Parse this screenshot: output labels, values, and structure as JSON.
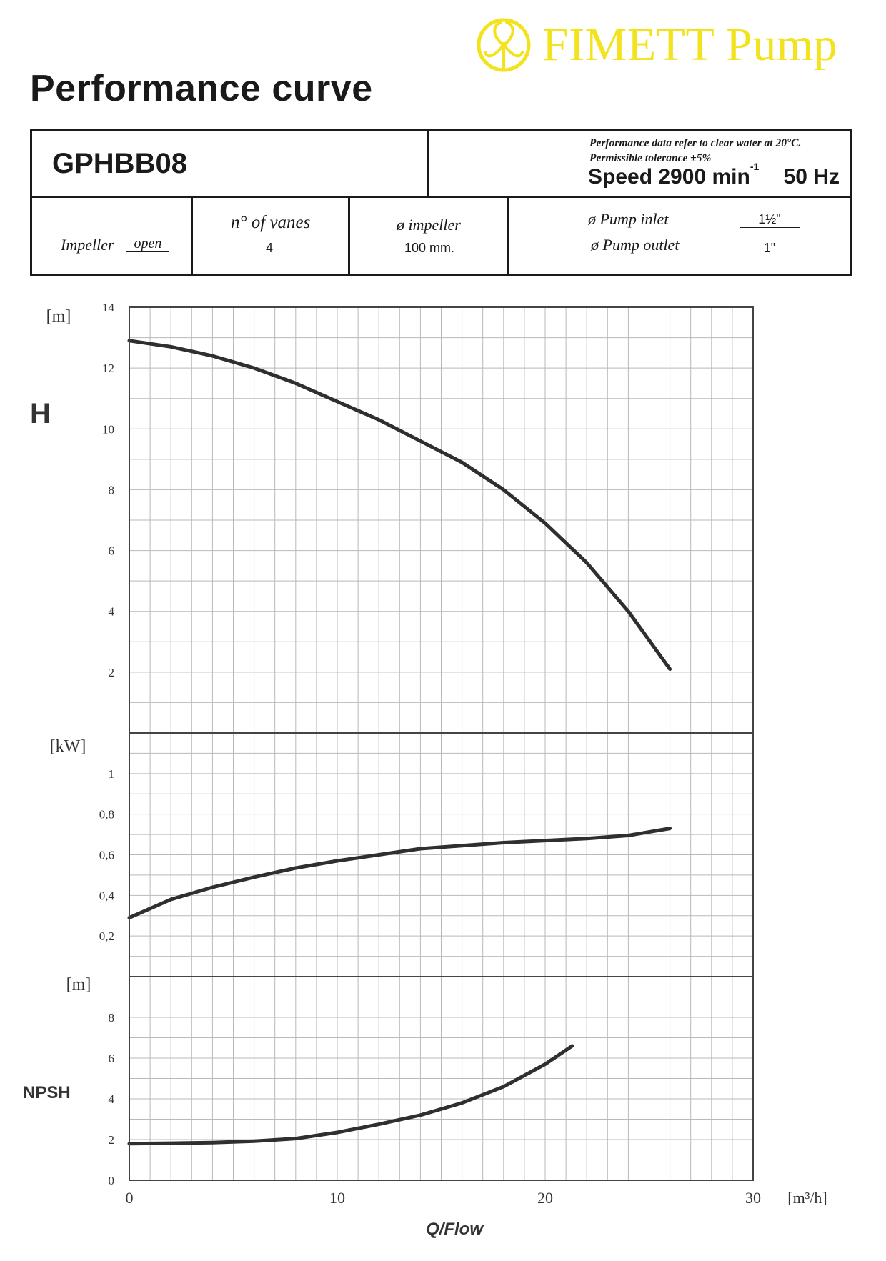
{
  "brand": {
    "name": "FIMETT Pump",
    "color": "#f2e31c",
    "icon": "pinwheel-logo-icon"
  },
  "page_title": "Performance curve",
  "model": "GPHBB08",
  "notes": {
    "line1": "Performance data refer to clear water at 20°C.",
    "line2": "Permissible tolerance ±5%"
  },
  "speed": {
    "label": "Speed",
    "value": "2900",
    "unit": "min",
    "exponent": "-1",
    "frequency": "50 Hz"
  },
  "specs": {
    "impeller_label": "Impeller",
    "impeller_value": "open",
    "vanes_label": "n°  of vanes",
    "vanes_value": "4",
    "impeller_dia_label": "ø impeller",
    "impeller_dia_value": "100 mm.",
    "inlet_label": "ø Pump inlet",
    "inlet_value": "1½\"",
    "outlet_label": "ø Pump outlet",
    "outlet_value": "1\""
  },
  "chart_data": [
    {
      "type": "line",
      "panel": "head",
      "label": "H",
      "yunit": "[m]",
      "xlim": [
        0,
        30
      ],
      "ylim": [
        0,
        14
      ],
      "yticks": [
        2,
        4,
        6,
        8,
        10,
        12,
        14
      ],
      "grid": true,
      "series": [
        {
          "x": [
            0,
            2,
            4,
            6,
            8,
            10,
            12,
            14,
            16,
            18,
            20,
            22,
            24,
            26
          ],
          "y": [
            12.9,
            12.7,
            12.4,
            12.0,
            11.5,
            10.9,
            10.3,
            9.6,
            8.9,
            8.0,
            6.9,
            5.6,
            4.0,
            2.1
          ]
        }
      ]
    },
    {
      "type": "line",
      "panel": "power",
      "yunit": "[kW]",
      "xlim": [
        0,
        30
      ],
      "ylim": [
        0,
        1.2
      ],
      "yticks": [
        "0,2",
        "0,4",
        "0,6",
        "0,8",
        "1"
      ],
      "grid": true,
      "series": [
        {
          "x": [
            0,
            2,
            4,
            6,
            8,
            10,
            12,
            14,
            16,
            18,
            20,
            22,
            24,
            26
          ],
          "y": [
            0.29,
            0.38,
            0.44,
            0.49,
            0.535,
            0.57,
            0.6,
            0.63,
            0.645,
            0.66,
            0.67,
            0.68,
            0.695,
            0.73
          ]
        }
      ]
    },
    {
      "type": "line",
      "panel": "npsh",
      "label": "NPSH",
      "yunit": "[m]",
      "xlim": [
        0,
        30
      ],
      "ylim": [
        0,
        10
      ],
      "yticks": [
        "0",
        "2",
        "4",
        "6",
        "8"
      ],
      "xticks": [
        "0",
        "10",
        "20",
        "30"
      ],
      "xunit": "[m³/h]",
      "xlabel": "Q/Flow",
      "grid": true,
      "series": [
        {
          "x": [
            0,
            2,
            4,
            6,
            8,
            10,
            12,
            14,
            16,
            18,
            20,
            21.3
          ],
          "y": [
            1.8,
            1.82,
            1.85,
            1.92,
            2.05,
            2.35,
            2.75,
            3.2,
            3.8,
            4.6,
            5.7,
            6.6
          ]
        }
      ]
    }
  ]
}
